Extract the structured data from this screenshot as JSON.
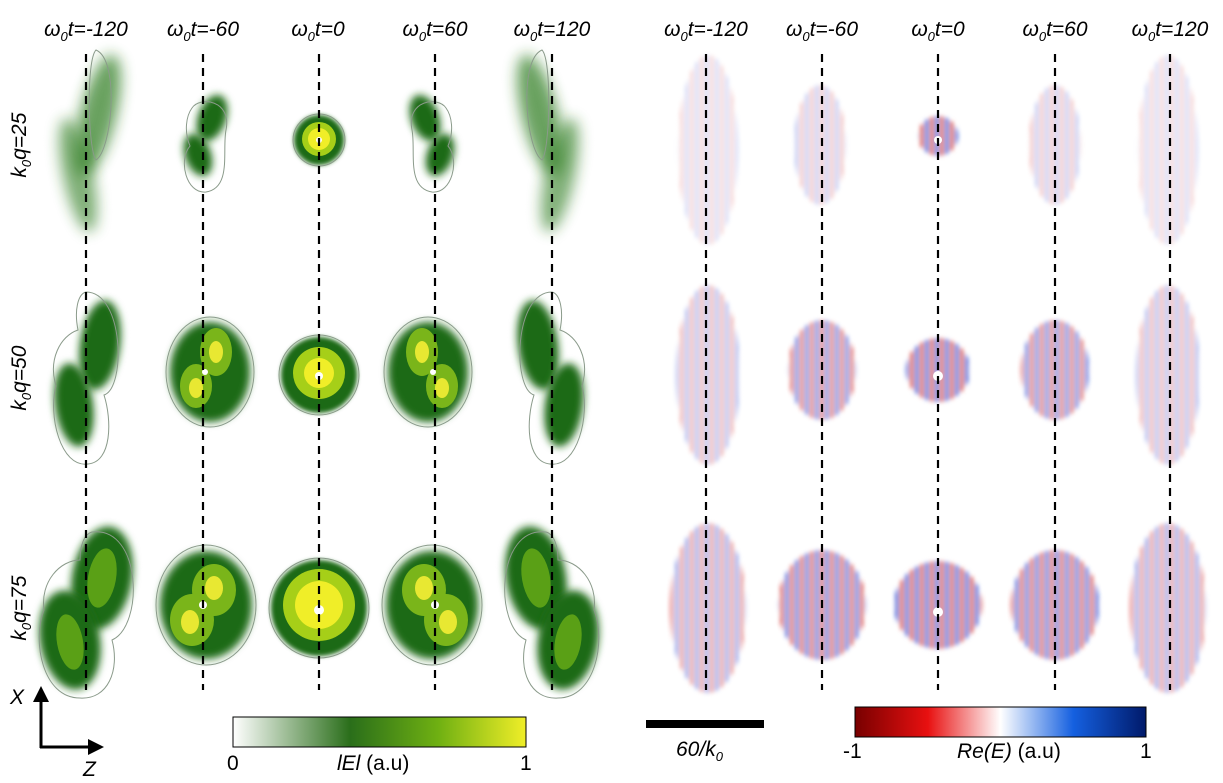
{
  "figure": {
    "column_titles": [
      {
        "symbol": "ω",
        "sub": "0",
        "text": "t=-120"
      },
      {
        "symbol": "ω",
        "sub": "0",
        "text": "t=-60"
      },
      {
        "symbol": "ω",
        "sub": "0",
        "text": "t=0"
      },
      {
        "symbol": "ω",
        "sub": "0",
        "text": "t=60"
      },
      {
        "symbol": "ω",
        "sub": "0",
        "text": "t=120"
      }
    ],
    "row_labels": [
      {
        "symbol": "k",
        "sub": "0",
        "text": "q=25"
      },
      {
        "symbol": "k",
        "sub": "0",
        "text": "q=50"
      },
      {
        "symbol": "k",
        "sub": "0",
        "text": "q=75"
      }
    ],
    "axes_indicator": {
      "vertical": "X",
      "horizontal": "Z"
    },
    "scale_bar": {
      "label_main": "60/k",
      "label_sub": "0"
    },
    "colorbar_intensity": {
      "min_label": "0",
      "max_label": "1",
      "label_main": "lEl",
      "label_unit": " (a.u)",
      "colors": [
        "#ffffff",
        "#2a6e1a",
        "#6fb012",
        "#f0ee28"
      ]
    },
    "colorbar_field": {
      "min_label": "-1",
      "max_label": "1",
      "label_main": "Re(E)",
      "label_unit": " (a.u)",
      "colors": [
        "#780000",
        "#e81010",
        "#ffffff",
        "#1560e0",
        "#001a6a"
      ]
    }
  }
}
